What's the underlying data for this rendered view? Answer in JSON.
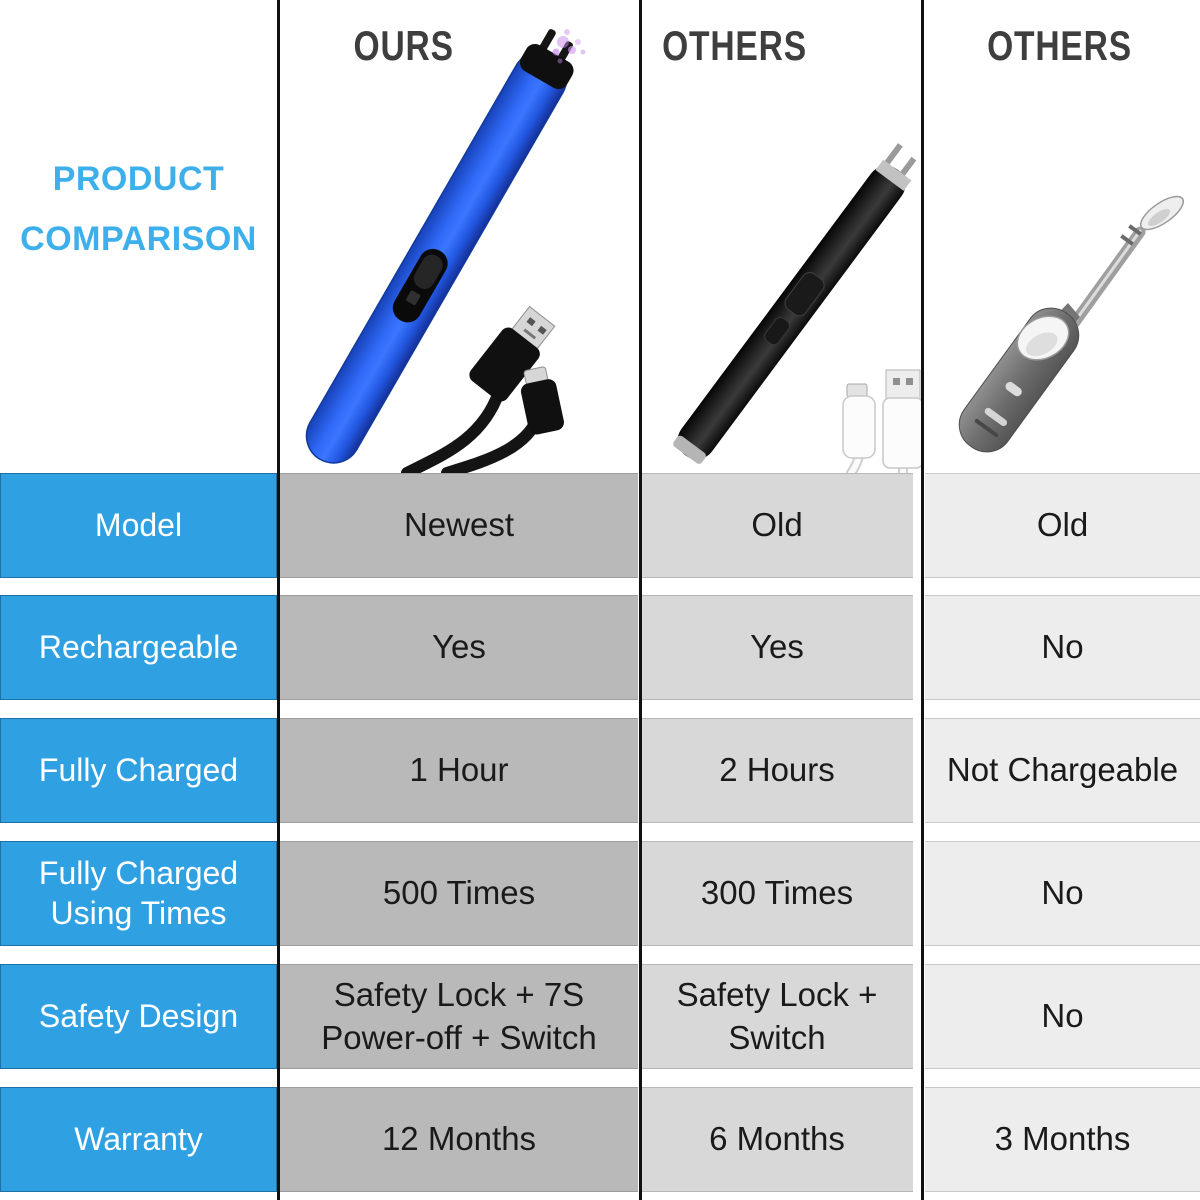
{
  "title": {
    "line1": "PRODUCT",
    "line2": "COMPARISON"
  },
  "columns": [
    {
      "header": "OURS",
      "product": "blue-electric-arc-lighter-with-black-usb-cable"
    },
    {
      "header": "OTHERS",
      "product": "black-electric-arc-lighter-with-white-usb-cable"
    },
    {
      "header": "OTHERS",
      "product": "gray-butane-utility-lighter"
    }
  ],
  "rows": [
    {
      "label": "Model",
      "values": [
        "Newest",
        "Old",
        "Old"
      ]
    },
    {
      "label": "Rechargeable",
      "values": [
        "Yes",
        "Yes",
        "No"
      ]
    },
    {
      "label": "Fully Charged",
      "values": [
        "1 Hour",
        "2 Hours",
        "Not Chargeable"
      ]
    },
    {
      "label": "Fully Charged Using Times",
      "values": [
        "500 Times",
        "300 Times",
        "No"
      ]
    },
    {
      "label": "Safety Design",
      "values": [
        "Safety Lock + 7S Power-off + Switch",
        "Safety Lock + Switch",
        "No"
      ]
    },
    {
      "label": "Warranty",
      "values": [
        "12 Months",
        "6 Months",
        "3 Months"
      ]
    }
  ],
  "chart_data": {
    "type": "table",
    "title": "PRODUCT COMPARISON",
    "columns": [
      "",
      "OURS",
      "OTHERS",
      "OTHERS"
    ],
    "rows": [
      [
        "Model",
        "Newest",
        "Old",
        "Old"
      ],
      [
        "Rechargeable",
        "Yes",
        "Yes",
        "No"
      ],
      [
        "Fully Charged",
        "1 Hour",
        "2 Hours",
        "Not Chargeable"
      ],
      [
        "Fully Charged Using Times",
        "500 Times",
        "300 Times",
        "No"
      ],
      [
        "Safety Design",
        "Safety Lock + 7S Power-off + Switch",
        "Safety Lock + Switch",
        "No"
      ],
      [
        "Warranty",
        "12 Months",
        "6 Months",
        "3 Months"
      ]
    ]
  },
  "colors": {
    "accent-blue": "#2FA1E2",
    "title-blue": "#3DAFEB",
    "header-text": "#3E3E3E",
    "cell-text": "#1A1A1A",
    "label-text": "#FFFFFF",
    "col1-cell-bg": "#B9B9B9",
    "col2-cell-bg": "#D8D8D8",
    "col3-cell-bg": "#EDEDED",
    "divider": "#101010",
    "lighter-blue": "#2E62EC",
    "spark-purple": "#C77DF0"
  }
}
